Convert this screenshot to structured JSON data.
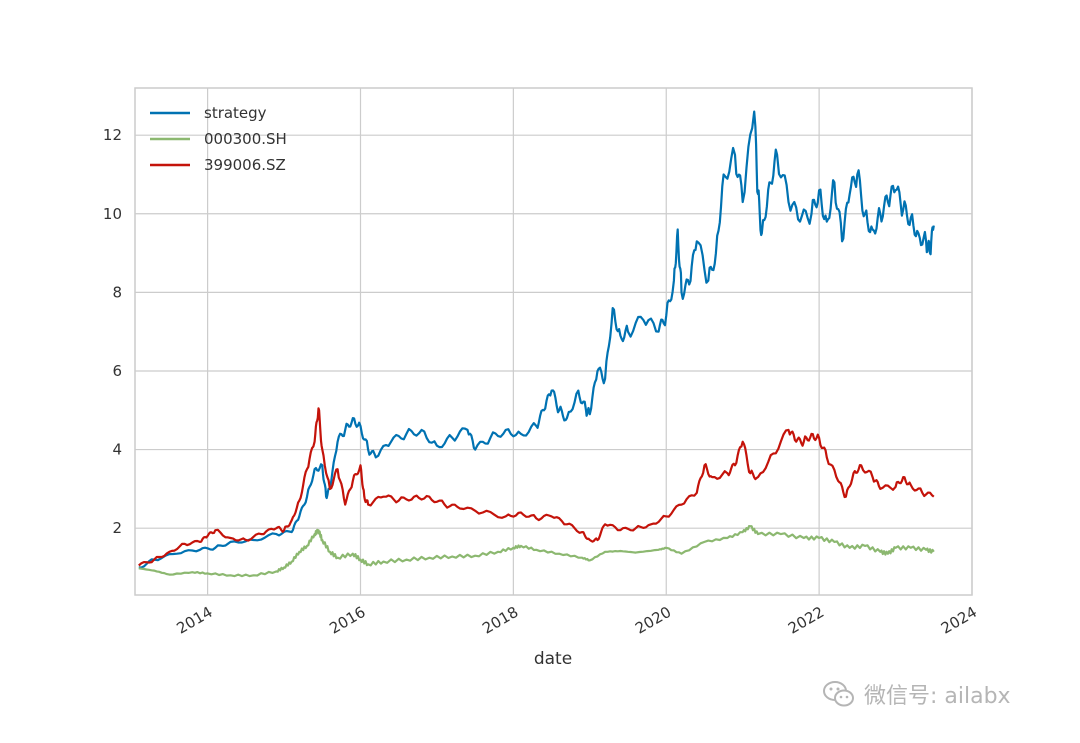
{
  "chart_data": {
    "type": "line",
    "title": "",
    "xlabel": "date",
    "ylabel": "",
    "xlim": [
      2013.05,
      2024.0
    ],
    "ylim": [
      0.3,
      13.2
    ],
    "xticks": [
      2014,
      2016,
      2018,
      2020,
      2022,
      2024
    ],
    "xtick_labels": [
      "2014",
      "2016",
      "2018",
      "2020",
      "2022",
      "2024"
    ],
    "yticks": [
      2,
      4,
      6,
      8,
      10,
      12
    ],
    "ytick_labels": [
      "2",
      "4",
      "6",
      "8",
      "10",
      "12"
    ],
    "grid": true,
    "legend_position": "top-left",
    "series": [
      {
        "name": "strategy",
        "color": "#0072B2",
        "points": [
          [
            2013.1,
            1.0
          ],
          [
            2013.3,
            1.2
          ],
          [
            2013.6,
            1.35
          ],
          [
            2013.9,
            1.45
          ],
          [
            2014.1,
            1.5
          ],
          [
            2014.3,
            1.65
          ],
          [
            2014.6,
            1.7
          ],
          [
            2014.9,
            1.85
          ],
          [
            2015.1,
            1.9
          ],
          [
            2015.2,
            2.3
          ],
          [
            2015.3,
            2.8
          ],
          [
            2015.4,
            3.5
          ],
          [
            2015.5,
            3.6
          ],
          [
            2015.55,
            2.8
          ],
          [
            2015.6,
            3.0
          ],
          [
            2015.7,
            4.2
          ],
          [
            2015.8,
            4.5
          ],
          [
            2015.9,
            4.8
          ],
          [
            2016.0,
            4.6
          ],
          [
            2016.1,
            4.0
          ],
          [
            2016.2,
            3.8
          ],
          [
            2016.4,
            4.2
          ],
          [
            2016.6,
            4.4
          ],
          [
            2016.8,
            4.5
          ],
          [
            2017.0,
            4.1
          ],
          [
            2017.2,
            4.3
          ],
          [
            2017.4,
            4.5
          ],
          [
            2017.5,
            4.0
          ],
          [
            2017.7,
            4.3
          ],
          [
            2017.9,
            4.5
          ],
          [
            2018.1,
            4.4
          ],
          [
            2018.3,
            4.6
          ],
          [
            2018.4,
            5.0
          ],
          [
            2018.5,
            5.5
          ],
          [
            2018.6,
            5.0
          ],
          [
            2018.7,
            4.8
          ],
          [
            2018.85,
            5.5
          ],
          [
            2018.95,
            5.0
          ],
          [
            2019.0,
            4.9
          ],
          [
            2019.1,
            6.0
          ],
          [
            2019.2,
            5.8
          ],
          [
            2019.3,
            7.6
          ],
          [
            2019.4,
            6.9
          ],
          [
            2019.5,
            7.0
          ],
          [
            2019.7,
            7.3
          ],
          [
            2019.9,
            7.0
          ],
          [
            2020.0,
            7.4
          ],
          [
            2020.1,
            8.3
          ],
          [
            2020.15,
            9.6
          ],
          [
            2020.2,
            8.0
          ],
          [
            2020.3,
            8.2
          ],
          [
            2020.4,
            9.3
          ],
          [
            2020.55,
            8.3
          ],
          [
            2020.65,
            9.0
          ],
          [
            2020.75,
            11.0
          ],
          [
            2020.9,
            11.5
          ],
          [
            2021.0,
            10.3
          ],
          [
            2021.15,
            12.6
          ],
          [
            2021.2,
            10.5
          ],
          [
            2021.25,
            9.5
          ],
          [
            2021.35,
            10.8
          ],
          [
            2021.45,
            11.5
          ],
          [
            2021.6,
            10.3
          ],
          [
            2021.75,
            9.8
          ],
          [
            2021.9,
            10.0
          ],
          [
            2022.0,
            10.6
          ],
          [
            2022.1,
            9.8
          ],
          [
            2022.2,
            10.8
          ],
          [
            2022.3,
            9.3
          ],
          [
            2022.4,
            10.5
          ],
          [
            2022.5,
            11.0
          ],
          [
            2022.6,
            10.0
          ],
          [
            2022.7,
            9.6
          ],
          [
            2022.8,
            10.0
          ],
          [
            2022.9,
            10.3
          ],
          [
            2023.0,
            10.6
          ],
          [
            2023.1,
            10.1
          ],
          [
            2023.2,
            9.9
          ],
          [
            2023.3,
            9.5
          ],
          [
            2023.4,
            9.3
          ],
          [
            2023.45,
            9.0
          ],
          [
            2023.5,
            9.7
          ]
        ]
      },
      {
        "name": "000300.SH",
        "color": "#8CB870",
        "points": [
          [
            2013.1,
            0.98
          ],
          [
            2013.3,
            0.92
          ],
          [
            2013.5,
            0.82
          ],
          [
            2013.8,
            0.88
          ],
          [
            2014.0,
            0.85
          ],
          [
            2014.3,
            0.8
          ],
          [
            2014.6,
            0.8
          ],
          [
            2014.9,
            0.9
          ],
          [
            2015.0,
            1.0
          ],
          [
            2015.1,
            1.15
          ],
          [
            2015.2,
            1.4
          ],
          [
            2015.3,
            1.55
          ],
          [
            2015.4,
            1.85
          ],
          [
            2015.45,
            1.95
          ],
          [
            2015.5,
            1.7
          ],
          [
            2015.6,
            1.4
          ],
          [
            2015.7,
            1.25
          ],
          [
            2015.9,
            1.35
          ],
          [
            2016.0,
            1.2
          ],
          [
            2016.1,
            1.08
          ],
          [
            2016.3,
            1.15
          ],
          [
            2016.6,
            1.2
          ],
          [
            2016.9,
            1.25
          ],
          [
            2017.2,
            1.28
          ],
          [
            2017.5,
            1.3
          ],
          [
            2017.8,
            1.4
          ],
          [
            2018.0,
            1.5
          ],
          [
            2018.1,
            1.55
          ],
          [
            2018.3,
            1.45
          ],
          [
            2018.6,
            1.35
          ],
          [
            2018.9,
            1.25
          ],
          [
            2019.0,
            1.18
          ],
          [
            2019.2,
            1.4
          ],
          [
            2019.4,
            1.42
          ],
          [
            2019.6,
            1.38
          ],
          [
            2019.9,
            1.45
          ],
          [
            2020.0,
            1.5
          ],
          [
            2020.2,
            1.35
          ],
          [
            2020.5,
            1.65
          ],
          [
            2020.8,
            1.75
          ],
          [
            2021.0,
            1.9
          ],
          [
            2021.1,
            2.05
          ],
          [
            2021.2,
            1.85
          ],
          [
            2021.5,
            1.85
          ],
          [
            2021.8,
            1.75
          ],
          [
            2022.0,
            1.75
          ],
          [
            2022.2,
            1.65
          ],
          [
            2022.4,
            1.5
          ],
          [
            2022.6,
            1.55
          ],
          [
            2022.8,
            1.4
          ],
          [
            2022.9,
            1.35
          ],
          [
            2023.0,
            1.5
          ],
          [
            2023.2,
            1.5
          ],
          [
            2023.4,
            1.45
          ],
          [
            2023.5,
            1.4
          ]
        ]
      },
      {
        "name": "399006.SZ",
        "color": "#C4130A",
        "points": [
          [
            2013.1,
            1.05
          ],
          [
            2013.3,
            1.2
          ],
          [
            2013.5,
            1.4
          ],
          [
            2013.7,
            1.6
          ],
          [
            2013.9,
            1.65
          ],
          [
            2014.0,
            1.8
          ],
          [
            2014.1,
            1.95
          ],
          [
            2014.3,
            1.75
          ],
          [
            2014.5,
            1.7
          ],
          [
            2014.7,
            1.85
          ],
          [
            2014.9,
            2.0
          ],
          [
            2015.0,
            1.95
          ],
          [
            2015.1,
            2.2
          ],
          [
            2015.2,
            2.7
          ],
          [
            2015.3,
            3.5
          ],
          [
            2015.4,
            4.2
          ],
          [
            2015.45,
            5.05
          ],
          [
            2015.5,
            4.0
          ],
          [
            2015.6,
            3.0
          ],
          [
            2015.7,
            3.5
          ],
          [
            2015.8,
            2.6
          ],
          [
            2015.9,
            3.2
          ],
          [
            2016.0,
            3.6
          ],
          [
            2016.05,
            2.8
          ],
          [
            2016.1,
            2.6
          ],
          [
            2016.3,
            2.8
          ],
          [
            2016.5,
            2.7
          ],
          [
            2016.7,
            2.8
          ],
          [
            2016.9,
            2.8
          ],
          [
            2017.1,
            2.6
          ],
          [
            2017.3,
            2.5
          ],
          [
            2017.6,
            2.4
          ],
          [
            2017.9,
            2.3
          ],
          [
            2018.1,
            2.4
          ],
          [
            2018.3,
            2.25
          ],
          [
            2018.5,
            2.3
          ],
          [
            2018.7,
            2.1
          ],
          [
            2018.9,
            1.9
          ],
          [
            2019.0,
            1.7
          ],
          [
            2019.1,
            1.7
          ],
          [
            2019.2,
            2.1
          ],
          [
            2019.4,
            1.95
          ],
          [
            2019.6,
            2.0
          ],
          [
            2019.8,
            2.1
          ],
          [
            2020.0,
            2.3
          ],
          [
            2020.2,
            2.6
          ],
          [
            2020.4,
            2.9
          ],
          [
            2020.5,
            3.6
          ],
          [
            2020.6,
            3.3
          ],
          [
            2020.8,
            3.4
          ],
          [
            2020.9,
            3.6
          ],
          [
            2021.0,
            4.2
          ],
          [
            2021.1,
            3.4
          ],
          [
            2021.2,
            3.3
          ],
          [
            2021.4,
            3.9
          ],
          [
            2021.6,
            4.5
          ],
          [
            2021.7,
            4.2
          ],
          [
            2021.8,
            4.2
          ],
          [
            2021.9,
            4.4
          ],
          [
            2022.0,
            4.3
          ],
          [
            2022.1,
            3.8
          ],
          [
            2022.25,
            3.2
          ],
          [
            2022.35,
            2.8
          ],
          [
            2022.45,
            3.4
          ],
          [
            2022.55,
            3.6
          ],
          [
            2022.7,
            3.3
          ],
          [
            2022.8,
            3.0
          ],
          [
            2023.0,
            3.05
          ],
          [
            2023.1,
            3.3
          ],
          [
            2023.2,
            3.1
          ],
          [
            2023.35,
            2.9
          ],
          [
            2023.5,
            2.8
          ]
        ]
      }
    ]
  },
  "watermark": {
    "icon": "wechat-icon",
    "text": "微信号: ailabx"
  }
}
